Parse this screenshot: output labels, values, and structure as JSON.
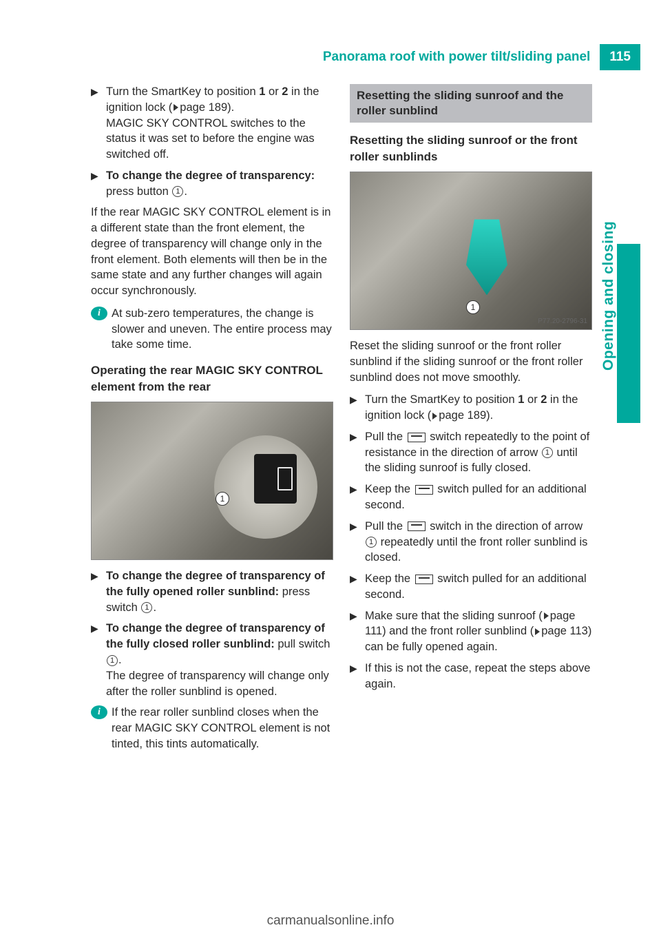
{
  "header": {
    "title": "Panorama roof with power tilt/sliding panel",
    "page_number": "115"
  },
  "side_tab": "Opening and closing",
  "colors": {
    "accent": "#00a99d",
    "section_bg": "#bcbdc1",
    "text": "#2b2b2b",
    "footer_text": "#555555"
  },
  "left": {
    "b1": {
      "p1a": "Turn the SmartKey to position ",
      "pos1": "1",
      "p1b": " or ",
      "pos2": "2",
      "p1c": " in the ignition lock (",
      "pref": "page 189",
      "p1d": ").",
      "p2": "MAGIC SKY CONTROL switches to the status it was set to before the engine was switched off."
    },
    "b2": {
      "strong": "To change the degree of transparency:",
      "rest": " press button ",
      "num": "1",
      "end": "."
    },
    "para1": "If the rear MAGIC SKY CONTROL element is in a different state than the front element, the degree of transparency will change only in the front element. Both elements will then be in the same state and any further changes will again occur synchronously.",
    "info1": "At sub-zero temperatures, the change is slower and uneven. The entire process may take some time.",
    "sub1": "Operating the rear MAGIC SKY CONTROL element from the rear",
    "fig_num": "1",
    "b3": {
      "strong": "To change the degree of transparency of the fully opened roller sunblind:",
      "rest": " press switch ",
      "num": "1",
      "end": "."
    },
    "b4": {
      "strong": "To change the degree of transparency of the fully closed roller sunblind:",
      "rest": " pull switch ",
      "num": "1",
      "end": ".",
      "p2": "The degree of transparency will change only after the roller sunblind is opened."
    },
    "info2": "If the rear roller sunblind closes when the rear MAGIC SKY CONTROL element is not tinted, this tints automatically."
  },
  "right": {
    "section": "Resetting the sliding sunroof and the roller sunblind",
    "sub1": "Resetting the sliding sunroof or the front roller sunblinds",
    "fig_caption": "P77.20-2796-31",
    "fig_num": "1",
    "para1": "Reset the sliding sunroof or the front roller sunblind if the sliding sunroof or the front roller sunblind does not move smoothly.",
    "b1": {
      "a": "Turn the SmartKey to position ",
      "pos1": "1",
      "b": " or ",
      "pos2": "2",
      "c": " in the ignition lock (",
      "pref": "page 189",
      "d": ")."
    },
    "b2": {
      "a": "Pull the ",
      "b": " switch repeatedly to the point of resistance in the direction of arrow ",
      "num": "1",
      "c": " until the sliding sunroof is fully closed."
    },
    "b3": {
      "a": "Keep the ",
      "b": " switch pulled for an additional second."
    },
    "b4": {
      "a": "Pull the ",
      "b": " switch in the direction of arrow ",
      "num": "1",
      "c": " repeatedly until the front roller sunblind is closed."
    },
    "b5": {
      "a": "Keep the ",
      "b": " switch pulled for an additional second."
    },
    "b6": {
      "a": "Make sure that the sliding sunroof (",
      "p1": "page 111",
      "b": ") and the front roller sunblind (",
      "p2": "page 113",
      "c": ") can be fully opened again."
    },
    "b7": "If this is not the case, repeat the steps above again."
  },
  "footer": "carmanualsonline.info"
}
